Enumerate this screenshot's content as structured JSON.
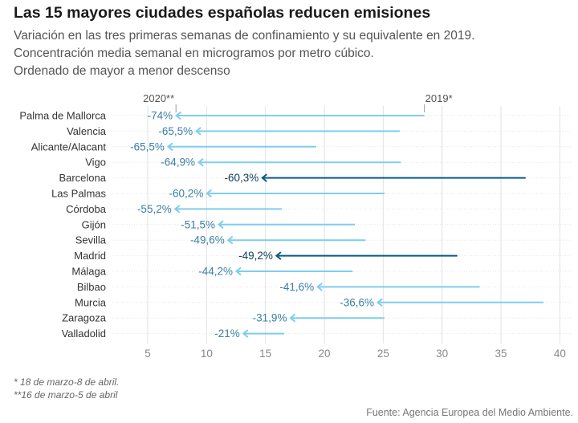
{
  "header": {
    "title": "Las 15 mayores ciudades españolas reducen emisiones",
    "subtitle_1": "Variación en las tres primeras semanas de confinamiento y su equivalente en 2019.",
    "subtitle_2": "Concentración media semanal en microgramos por metro cúbico.",
    "subtitle_3": "Ordenado de mayor a menor descenso"
  },
  "footer": {
    "note_1": "* 18 de marzo-8 de abril.",
    "note_2": "**16 de marzo-5 de abril",
    "source": "Fuente: Agencia Europea del Medio Ambiente."
  },
  "colors": {
    "light": "#7fcdee",
    "dark": "#0b5a84",
    "light_label": "#3a7fa6",
    "dark_label": "#0b3d5c",
    "grid": "#e2e2e2"
  },
  "chart_data": {
    "type": "arrow",
    "xlim": [
      2,
      41
    ],
    "x_ticks": [
      5,
      10,
      15,
      20,
      25,
      30,
      35,
      40
    ],
    "series_labels": {
      "start": "2019*",
      "end": "2020**"
    },
    "grid": true,
    "rows": [
      {
        "city": "Palma de Mallorca",
        "y2019": 28.5,
        "y2020": 7.4,
        "pct": "-74%",
        "highlight": false
      },
      {
        "city": "Valencia",
        "y2019": 26.4,
        "y2020": 9.1,
        "pct": "-65,5%",
        "highlight": false
      },
      {
        "city": "Alicante/Alacant",
        "y2019": 19.3,
        "y2020": 6.7,
        "pct": "-65,5%",
        "highlight": false
      },
      {
        "city": "Vigo",
        "y2019": 26.5,
        "y2020": 9.3,
        "pct": "-64,9%",
        "highlight": false
      },
      {
        "city": "Barcelona",
        "y2019": 37.1,
        "y2020": 14.7,
        "pct": "-60,3%",
        "highlight": true
      },
      {
        "city": "Las Palmas",
        "y2019": 25.1,
        "y2020": 10.0,
        "pct": "-60,2%",
        "highlight": false
      },
      {
        "city": "Córdoba",
        "y2019": 16.4,
        "y2020": 7.3,
        "pct": "-55,2%",
        "highlight": false
      },
      {
        "city": "Gijón",
        "y2019": 22.6,
        "y2020": 11.0,
        "pct": "-51,5%",
        "highlight": false
      },
      {
        "city": "Sevilla",
        "y2019": 23.5,
        "y2020": 11.8,
        "pct": "-49,6%",
        "highlight": false
      },
      {
        "city": "Madrid",
        "y2019": 31.3,
        "y2020": 15.9,
        "pct": "-49,2%",
        "highlight": true
      },
      {
        "city": "Málaga",
        "y2019": 22.4,
        "y2020": 12.5,
        "pct": "-44,2%",
        "highlight": false
      },
      {
        "city": "Bilbao",
        "y2019": 33.2,
        "y2020": 19.4,
        "pct": "-41,6%",
        "highlight": false
      },
      {
        "city": "Murcia",
        "y2019": 38.6,
        "y2020": 24.5,
        "pct": "-36,6%",
        "highlight": false
      },
      {
        "city": "Zaragoza",
        "y2019": 25.1,
        "y2020": 17.1,
        "pct": "-31,9%",
        "highlight": false
      },
      {
        "city": "Valladolid",
        "y2019": 16.6,
        "y2020": 13.1,
        "pct": "-21%",
        "highlight": false
      }
    ]
  }
}
